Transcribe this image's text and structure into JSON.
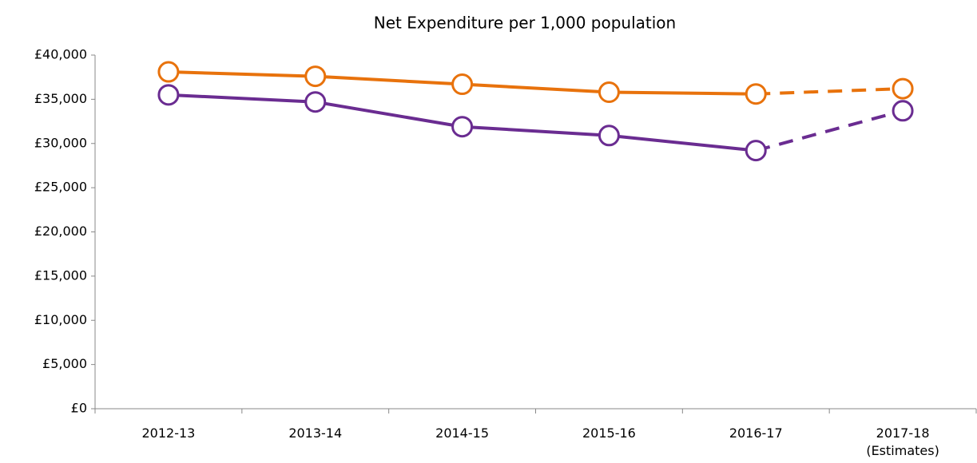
{
  "chart_data": {
    "type": "line",
    "title": "Net Expenditure per 1,000 population",
    "categories": [
      "2012-13",
      "2013-14",
      "2014-15",
      "2015-16",
      "2016-17",
      "2017-18\n(Estimates)"
    ],
    "series": [
      {
        "color": "#e8720c",
        "values": [
          38100,
          37600,
          36700,
          35800,
          35600,
          36200
        ],
        "dashed_from_index": 4
      },
      {
        "color": "#6a2c91",
        "values": [
          35500,
          34700,
          31900,
          30900,
          29200,
          33700
        ],
        "dashed_from_index": 4
      }
    ],
    "ylim": [
      0,
      40000
    ],
    "yticks": [
      {
        "value": 0,
        "label": "£0"
      },
      {
        "value": 5000,
        "label": "£5,000"
      },
      {
        "value": 10000,
        "label": "£10,000"
      },
      {
        "value": 15000,
        "label": "£15,000"
      },
      {
        "value": 20000,
        "label": "£20,000"
      },
      {
        "value": 25000,
        "label": "£25,000"
      },
      {
        "value": 30000,
        "label": "£30,000"
      },
      {
        "value": 35000,
        "label": "£35,000"
      },
      {
        "value": 40000,
        "label": "£40,000"
      }
    ],
    "grid": false
  }
}
